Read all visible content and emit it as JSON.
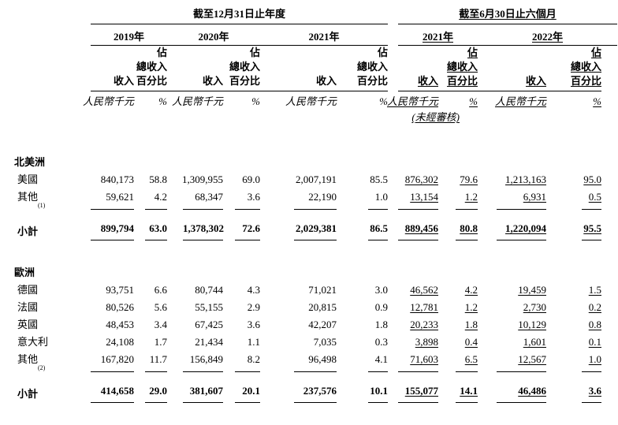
{
  "colors": {
    "background": "#ffffff",
    "text": "#000000",
    "rule": "#000000"
  },
  "table": {
    "annual_section": {
      "title": "截至12月31日止年度",
      "years": [
        "2019年",
        "2020年",
        "2021年"
      ]
    },
    "interim_section": {
      "title": "截至6月30日止六個月",
      "years": [
        "2021年",
        "2022年"
      ]
    },
    "subheaders": {
      "occupy": "佔",
      "total_revenue": "總收入",
      "revenue": "收入",
      "percentage": "百分比",
      "unit_rmb": "人民幣千元",
      "unit_percent": "%",
      "unaudited": "(未經審核)"
    },
    "rows": [
      {
        "type": "region",
        "label": "北美洲"
      },
      {
        "type": "item",
        "label": "美國",
        "values": [
          "840,173",
          "58.8",
          "1,309,955",
          "69.0",
          "2,007,191",
          "85.5",
          "876,302",
          "79.6",
          "1,213,163",
          "95.0"
        ]
      },
      {
        "type": "item",
        "label": "其他",
        "footnote": "(1)",
        "rule_after": true,
        "values": [
          "59,621",
          "4.2",
          "68,347",
          "3.6",
          "22,190",
          "1.0",
          "13,154",
          "1.2",
          "6,931",
          "0.5"
        ]
      },
      {
        "type": "subtotal",
        "label": "小計",
        "values": [
          "899,794",
          "63.0",
          "1,378,302",
          "72.6",
          "2,029,381",
          "86.5",
          "889,456",
          "80.8",
          "1,220,094",
          "95.5"
        ]
      },
      {
        "type": "region",
        "label": "歐洲"
      },
      {
        "type": "item",
        "label": "德國",
        "values": [
          "93,751",
          "6.6",
          "80,744",
          "4.3",
          "71,021",
          "3.0",
          "46,562",
          "4.2",
          "19,459",
          "1.5"
        ]
      },
      {
        "type": "item",
        "label": "法國",
        "values": [
          "80,526",
          "5.6",
          "55,155",
          "2.9",
          "20,815",
          "0.9",
          "12,781",
          "1.2",
          "2,730",
          "0.2"
        ]
      },
      {
        "type": "item",
        "label": "英國",
        "values": [
          "48,453",
          "3.4",
          "67,425",
          "3.6",
          "42,207",
          "1.8",
          "20,233",
          "1.8",
          "10,129",
          "0.8"
        ]
      },
      {
        "type": "item",
        "label": "意大利",
        "values": [
          "24,108",
          "1.7",
          "21,434",
          "1.1",
          "7,035",
          "0.3",
          "3,898",
          "0.4",
          "1,601",
          "0.1"
        ]
      },
      {
        "type": "item",
        "label": "其他",
        "footnote": "(2)",
        "rule_after": true,
        "values": [
          "167,820",
          "11.7",
          "156,849",
          "8.2",
          "96,498",
          "4.1",
          "71,603",
          "6.5",
          "12,567",
          "1.0"
        ]
      },
      {
        "type": "subtotal",
        "label": "小計",
        "values": [
          "414,658",
          "29.0",
          "381,607",
          "20.1",
          "237,576",
          "10.1",
          "155,077",
          "14.1",
          "46,486",
          "3.6"
        ]
      }
    ]
  }
}
